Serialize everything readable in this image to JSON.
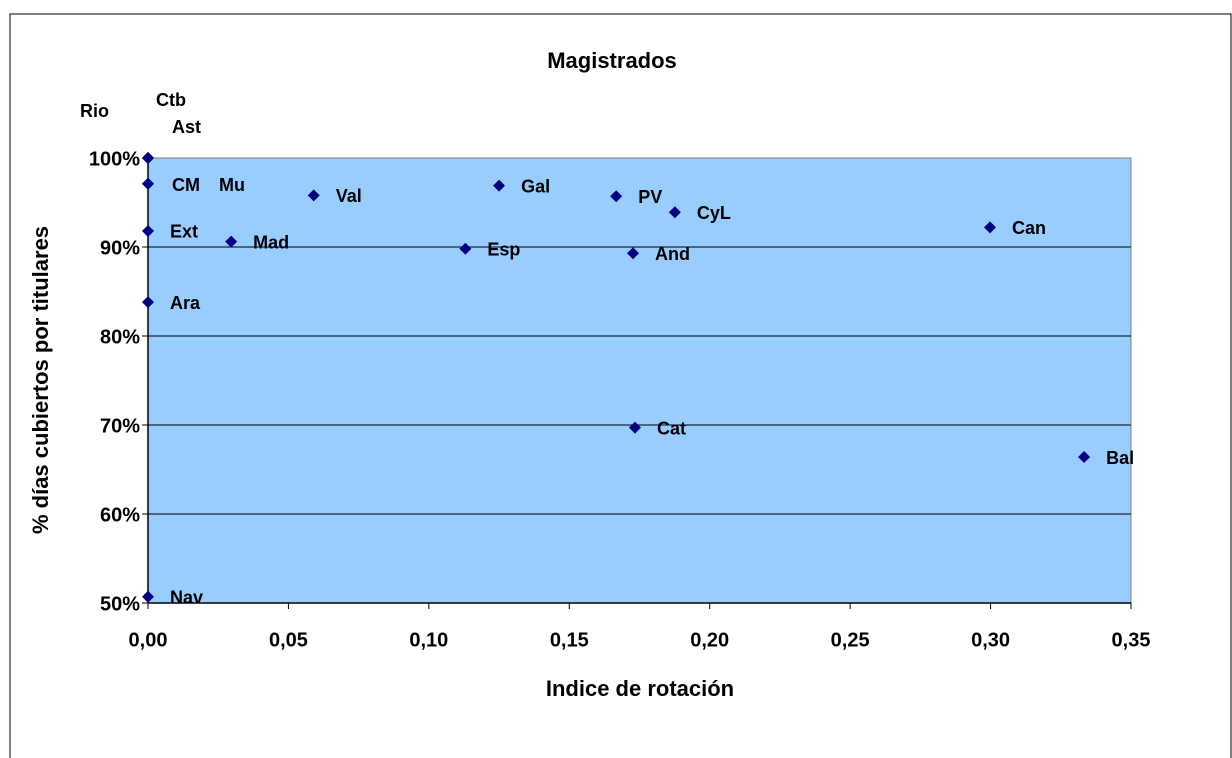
{
  "chart_data": {
    "type": "scatter",
    "title": "Magistrados",
    "x_label": "Indice de rotación",
    "y_label": "% días cubiertos por titulares",
    "series": [
      {
        "name": "Magistrados",
        "color": "#000080",
        "labels": [
          "Rio",
          "Ctb",
          "Ast",
          "CM",
          "Mu",
          "Ext",
          "Ara",
          "Nav",
          "Val",
          "Mad",
          "Esp",
          "Gal",
          "PV",
          "CyL",
          "And",
          "Can",
          "Cat",
          "Bal"
        ],
        "x": [
          0,
          0,
          0,
          0,
          0,
          0,
          0,
          0,
          0.059,
          0.0296,
          0.113,
          0.125,
          0.1667,
          0.1876,
          0.1727,
          0.2998,
          0.1734,
          0.3333
        ],
        "values": [
          100,
          100,
          100,
          97.1,
          97.1,
          91.8,
          83.8,
          50.7,
          95.8,
          90.6,
          89.8,
          96.9,
          95.7,
          93.9,
          89.3,
          92.2,
          69.7,
          66.4
        ]
      }
    ],
    "xlim": [
      0,
      0.35
    ],
    "xticks": [
      {
        "value": 0,
        "label": "0,00"
      },
      {
        "value": 0.05,
        "label": "0,05"
      },
      {
        "value": 0.1,
        "label": "0,10"
      },
      {
        "value": 0.15,
        "label": "0,15"
      },
      {
        "value": 0.2,
        "label": "0,20"
      },
      {
        "value": 0.25,
        "label": "0,25"
      },
      {
        "value": 0.3,
        "label": "0,30"
      },
      {
        "value": 0.35,
        "label": "0,35"
      }
    ],
    "ylim": [
      50,
      100
    ],
    "yticks": [
      {
        "value": 50,
        "label": "50%"
      },
      {
        "value": 60,
        "label": "60%"
      },
      {
        "value": 70,
        "label": "70%"
      },
      {
        "value": 80,
        "label": "80%"
      },
      {
        "value": 90,
        "label": "90%"
      },
      {
        "value": 100,
        "label": "100%"
      }
    ],
    "grid": true,
    "plot_background": "#99ccff"
  }
}
